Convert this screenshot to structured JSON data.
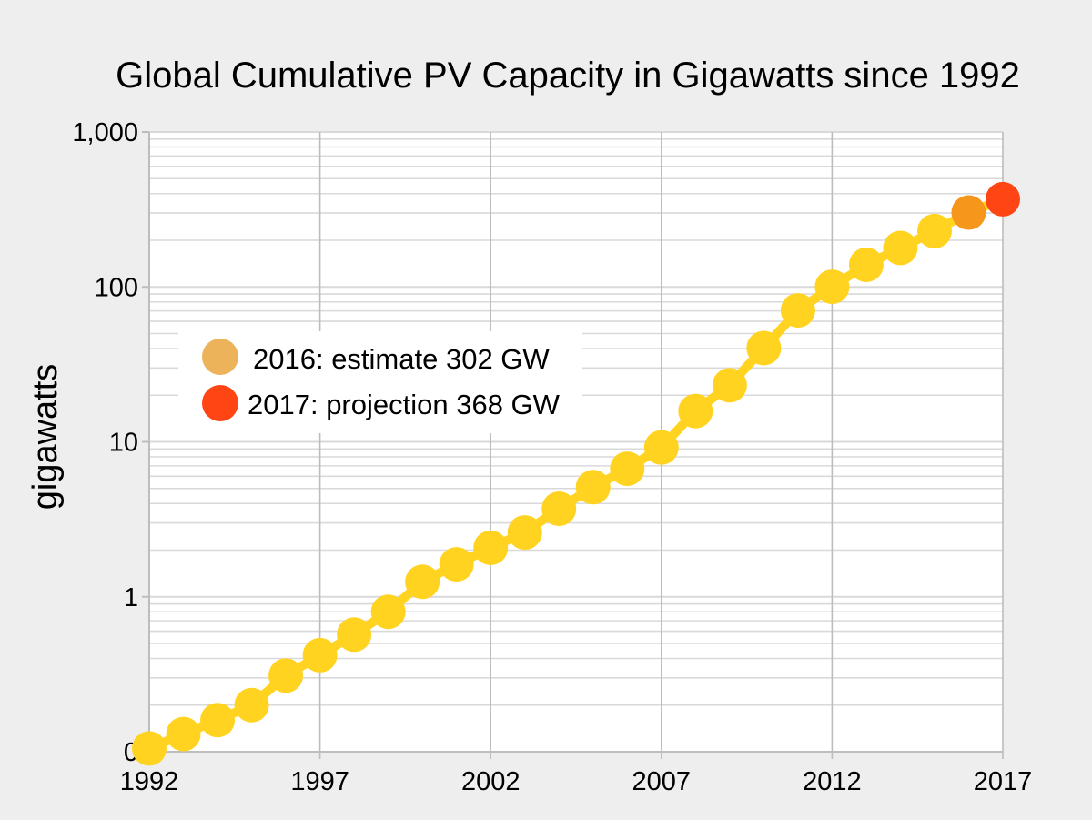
{
  "chart_data": {
    "type": "line",
    "title": "Global Cumulative PV Capacity in Gigawatts since 1992",
    "xlabel": "",
    "ylabel": "gigawatts",
    "y_scale": "log",
    "xlim": [
      1992,
      2017
    ],
    "x_ticks": [
      "1992",
      "1997",
      "2002",
      "2007",
      "2012",
      "2017"
    ],
    "y_ticks": [
      {
        "value": 0.1,
        "label": "0"
      },
      {
        "value": 1,
        "label": "1"
      },
      {
        "value": 10,
        "label": "10"
      },
      {
        "value": 100,
        "label": "100"
      },
      {
        "value": 1000,
        "label": "1,000"
      }
    ],
    "grid": true,
    "series": [
      {
        "x": [
          1992,
          1993,
          1994,
          1995,
          1996,
          1997,
          1998,
          1999,
          2000,
          2001,
          2002,
          2003,
          2004,
          2005,
          2006,
          2007,
          2008,
          2009,
          2010,
          2011,
          2012,
          2013,
          2014,
          2015,
          2016
        ],
        "values": [
          0.105,
          0.13,
          0.16,
          0.2,
          0.31,
          0.42,
          0.57,
          0.8,
          1.25,
          1.62,
          2.07,
          2.6,
          3.7,
          5.1,
          6.7,
          9.2,
          15.8,
          23.2,
          40.3,
          70.5,
          100.2,
          138.9,
          178.4,
          229.3,
          302
        ]
      }
    ],
    "highlights": [
      {
        "label": "2016: estimate  302 GW",
        "x": 2016,
        "value": 302,
        "color": "#f6971c"
      },
      {
        "label": "2017: projection 368 GW",
        "x": 2017,
        "value": 368,
        "color": "#ff4513"
      }
    ],
    "legend_position": "left",
    "colors": {
      "background": "#eeeeee",
      "plot_background": "#ffffff",
      "gridline": "#d9d9d9",
      "line": "#ffd320",
      "marker": "#ffd320",
      "estimate_marker": "#f6971c",
      "estimate_legend": "#ecb35a",
      "projection_marker": "#ff4513",
      "projection_legend": "#ff4513"
    }
  }
}
